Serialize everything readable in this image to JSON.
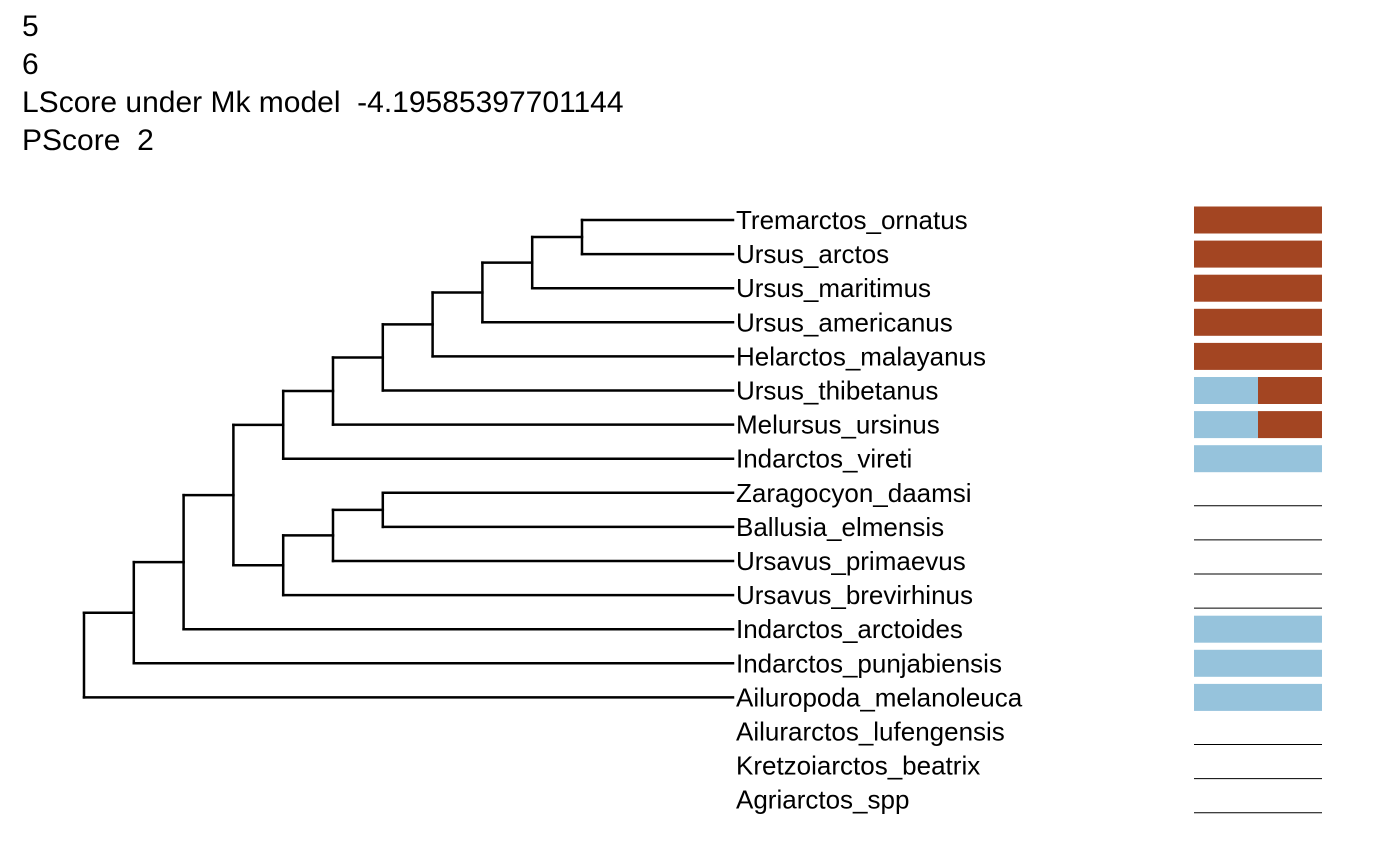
{
  "header": {
    "line1": "5",
    "line2": "6",
    "lscore_label": "LScore under Mk model",
    "lscore_value": "-4.19585397701144",
    "pscore_label": "PScore",
    "pscore_value": "2"
  },
  "colors": {
    "state_a": "#A34522",
    "state_b": "#96C3DC",
    "branch": "#000000",
    "missing": "#000000"
  },
  "tree": {
    "newick": "(((((((((((Tremarctos_ornatus,Ursus_arctos),Ursus_maritimus),Ursus_americanus),Helarctos_malayanus),Ursus_thibetanus),Melursus_ursinus),Indarctos_vireti),(((Zaragocyon_daamsi,Ballusia_elmensis),Ursavus_primaevus),Ursavus_brevirhinus)),Indarctos_arctoides),Indarctos_punjabiensis),Ailuropoda_melanoleuca),Ailurarctos_lufengensis),(Kretzoiarctos_beatrix,Agriarctos_spp));"
  },
  "taxa": [
    {
      "name": "Tremarctos_ornatus",
      "state_a": 1.0,
      "state_b": 0.0,
      "missing": false
    },
    {
      "name": "Ursus_arctos",
      "state_a": 1.0,
      "state_b": 0.0,
      "missing": false
    },
    {
      "name": "Ursus_maritimus",
      "state_a": 1.0,
      "state_b": 0.0,
      "missing": false
    },
    {
      "name": "Ursus_americanus",
      "state_a": 1.0,
      "state_b": 0.0,
      "missing": false
    },
    {
      "name": "Helarctos_malayanus",
      "state_a": 1.0,
      "state_b": 0.0,
      "missing": false
    },
    {
      "name": "Ursus_thibetanus",
      "state_a": 0.5,
      "state_b": 0.5,
      "missing": false
    },
    {
      "name": "Melursus_ursinus",
      "state_a": 0.5,
      "state_b": 0.5,
      "missing": false
    },
    {
      "name": "Indarctos_vireti",
      "state_a": 0.0,
      "state_b": 1.0,
      "missing": false
    },
    {
      "name": "Zaragocyon_daamsi",
      "state_a": 0.0,
      "state_b": 0.0,
      "missing": true
    },
    {
      "name": "Ballusia_elmensis",
      "state_a": 0.0,
      "state_b": 0.0,
      "missing": true
    },
    {
      "name": "Ursavus_primaevus",
      "state_a": 0.0,
      "state_b": 0.0,
      "missing": true
    },
    {
      "name": "Ursavus_brevirhinus",
      "state_a": 0.0,
      "state_b": 0.0,
      "missing": true
    },
    {
      "name": "Indarctos_arctoides",
      "state_a": 0.0,
      "state_b": 1.0,
      "missing": false
    },
    {
      "name": "Indarctos_punjabiensis",
      "state_a": 0.0,
      "state_b": 1.0,
      "missing": false
    },
    {
      "name": "Ailuropoda_melanoleuca",
      "state_a": 0.0,
      "state_b": 1.0,
      "missing": false
    },
    {
      "name": "Ailurarctos_lufengensis",
      "state_a": 0.0,
      "state_b": 0.0,
      "missing": true
    },
    {
      "name": "Kretzoiarctos_beatrix",
      "state_a": 0.0,
      "state_b": 0.0,
      "missing": true
    },
    {
      "name": "Agriarctos_spp",
      "state_a": 0.0,
      "state_b": 0.0,
      "missing": true
    }
  ]
}
